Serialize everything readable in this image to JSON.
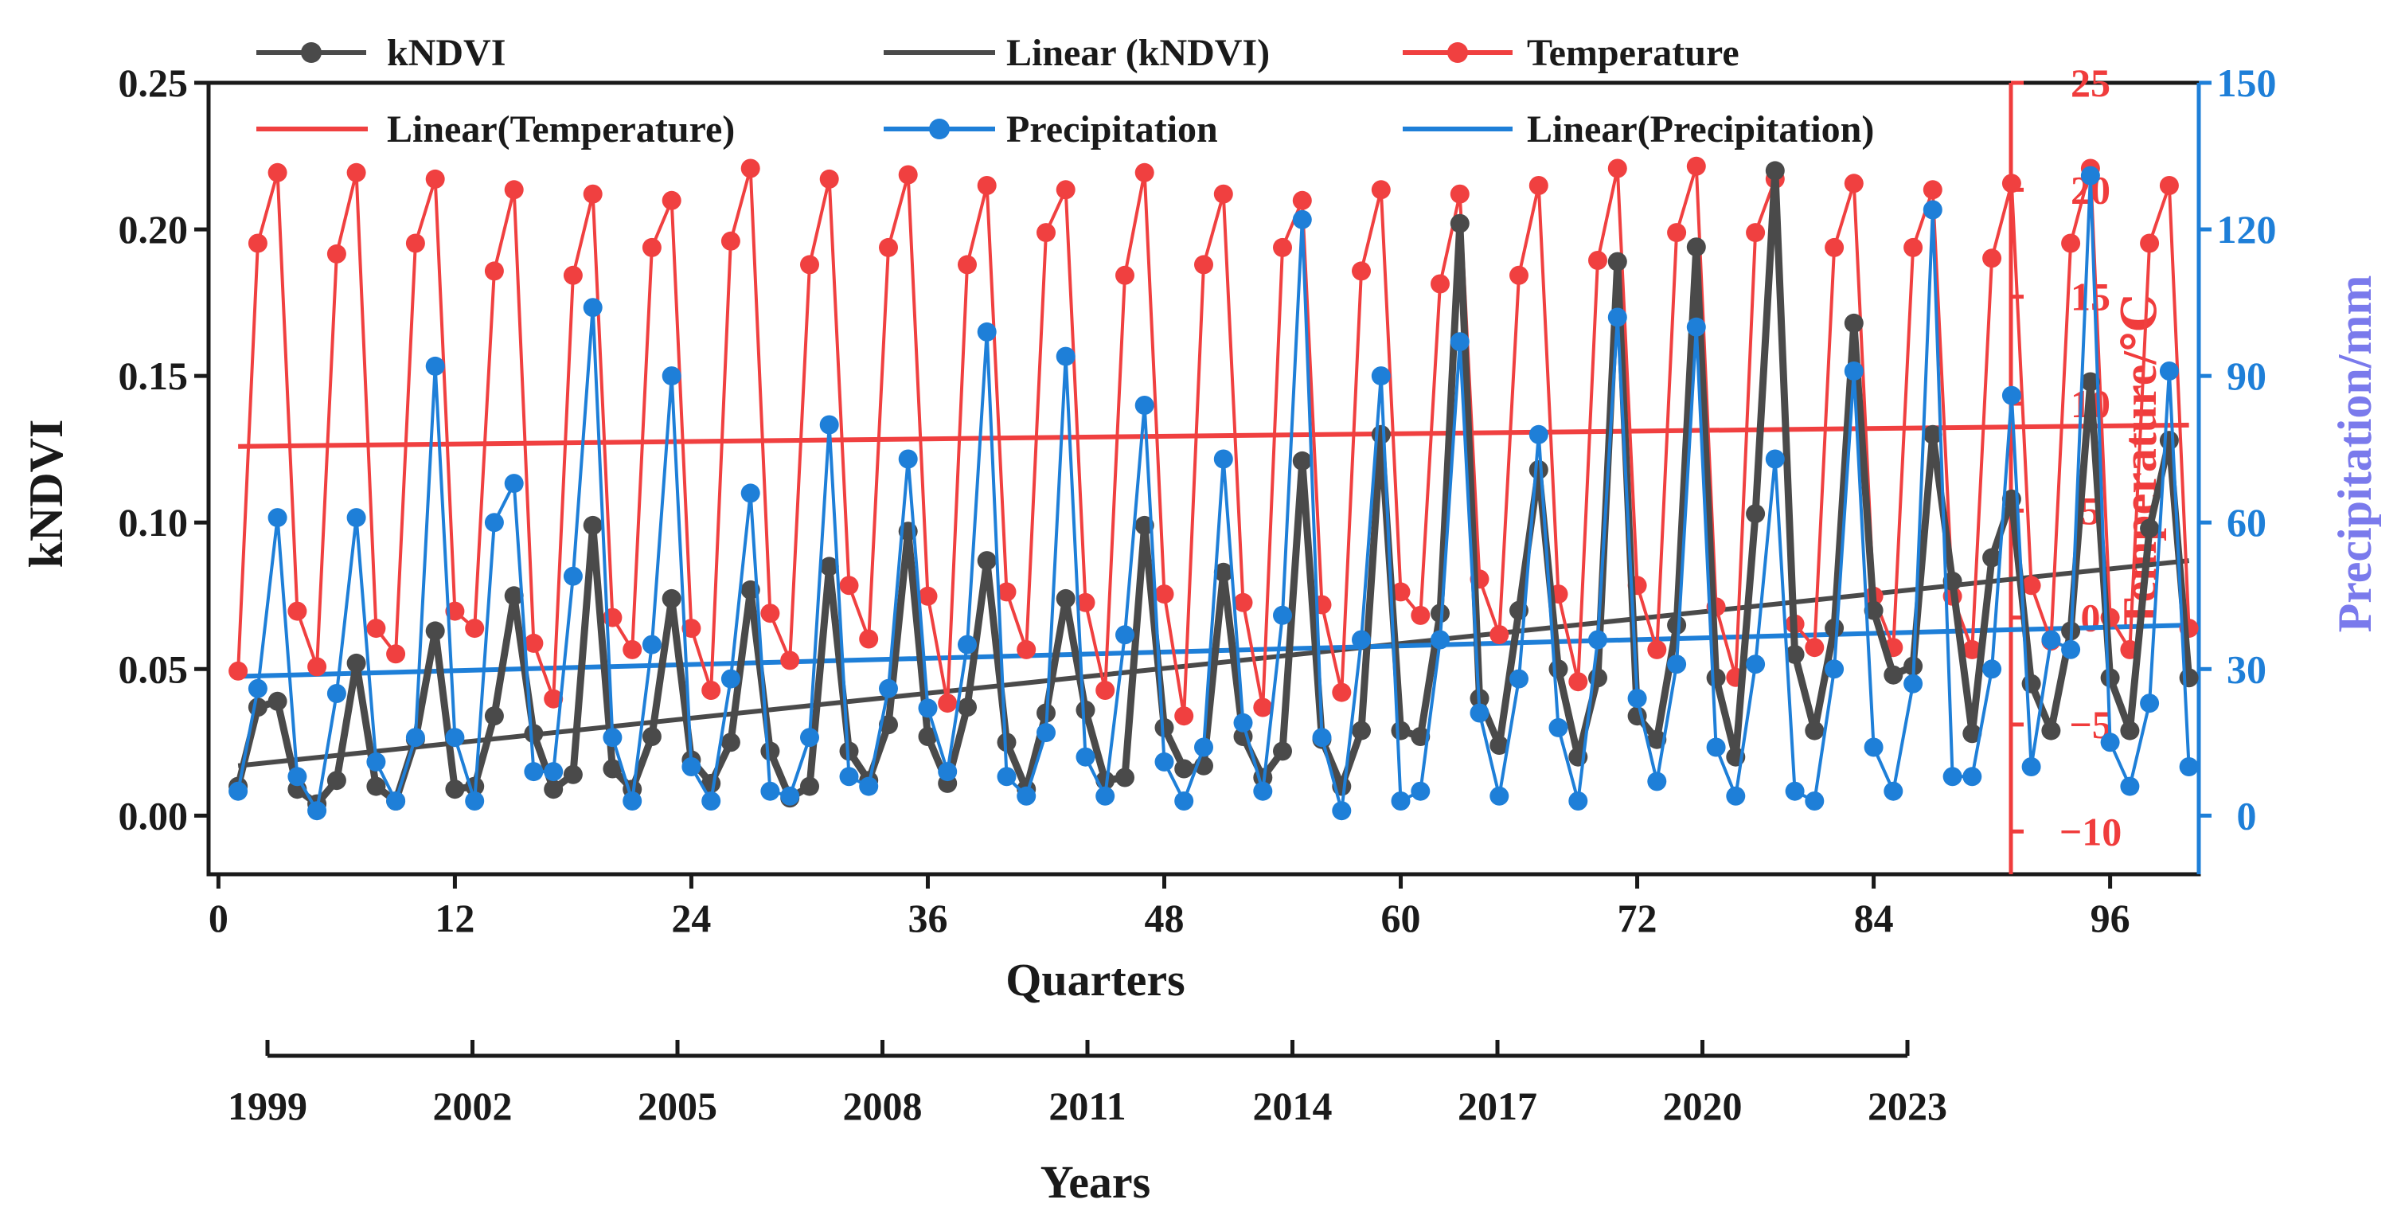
{
  "chart_data": {
    "type": "line",
    "title": "",
    "x": {
      "label": "Quarters",
      "range": [
        -0.5,
        100.5
      ],
      "ticks": [
        0,
        12,
        24,
        36,
        48,
        60,
        72,
        84,
        96
      ]
    },
    "years_axis": {
      "label": "Years",
      "ticks": [
        "1999",
        "2002",
        "2005",
        "2008",
        "2011",
        "2014",
        "2017",
        "2020",
        "2023"
      ]
    },
    "y_left": {
      "label": "kNDVI",
      "range": [
        -0.02,
        0.25
      ],
      "ticks": [
        "0.00",
        "0.05",
        "0.10",
        "0.15",
        "0.20",
        "0.25"
      ]
    },
    "y_temp": {
      "label": "Temperature/℃",
      "range": [
        -12,
        25
      ],
      "ticks": [
        "−10",
        "−5",
        "0",
        "5",
        "10",
        "15",
        "20",
        "25"
      ],
      "color": "#f03c3c"
    },
    "y_precip": {
      "label": "Precipitation/mm",
      "range": [
        -12,
        150
      ],
      "ticks": [
        "0",
        "30",
        "60",
        "90",
        "120",
        "150"
      ],
      "color": "#1e7fd8"
    },
    "legend": {
      "placement": "top",
      "entries": [
        {
          "label": "kNDVI",
          "kind": "line-marker",
          "color": "#4a4a4a"
        },
        {
          "label": "Linear (kNDVI)",
          "kind": "line",
          "color": "#4a4a4a"
        },
        {
          "label": "Temperature",
          "kind": "line-marker",
          "color": "#f04040"
        },
        {
          "label": "Linear(Temperature)",
          "kind": "line",
          "color": "#f04040"
        },
        {
          "label": "Precipitation",
          "kind": "line-marker",
          "color": "#1e7fd8"
        },
        {
          "label": "Linear(Precipitation)",
          "kind": "line",
          "color": "#1e7fd8"
        }
      ]
    },
    "series": [
      {
        "name": "kNDVI",
        "axis": "left",
        "color": "#4a4a4a",
        "x_start": 1,
        "values": [
          0.01,
          0.037,
          0.039,
          0.009,
          0.004,
          0.012,
          0.052,
          0.01,
          0.005,
          0.026,
          0.063,
          0.009,
          0.01,
          0.034,
          0.075,
          0.028,
          0.009,
          0.014,
          0.099,
          0.016,
          0.009,
          0.027,
          0.074,
          0.019,
          0.011,
          0.025,
          0.077,
          0.022,
          0.006,
          0.01,
          0.085,
          0.022,
          0.012,
          0.031,
          0.097,
          0.027,
          0.011,
          0.037,
          0.087,
          0.025,
          0.009,
          0.035,
          0.074,
          0.036,
          0.012,
          0.013,
          0.099,
          0.03,
          0.016,
          0.017,
          0.083,
          0.027,
          0.013,
          0.022,
          0.121,
          0.026,
          0.01,
          0.029,
          0.13,
          0.029,
          0.027,
          0.069,
          0.202,
          0.04,
          0.024,
          0.07,
          0.118,
          0.05,
          0.02,
          0.047,
          0.189,
          0.034,
          0.026,
          0.065,
          0.194,
          0.047,
          0.02,
          0.103,
          0.22,
          0.055,
          0.029,
          0.064,
          0.168,
          0.07,
          0.048,
          0.051,
          0.13,
          0.08,
          0.028,
          0.088,
          0.108,
          0.045,
          0.029,
          0.063,
          0.148,
          0.047,
          0.029,
          0.098,
          0.128,
          0.047
        ]
      },
      {
        "name": "Temperature",
        "axis": "temp",
        "color": "#f04040",
        "x_start": 1,
        "values": [
          -2.5,
          17.5,
          20.8,
          0.3,
          -2.3,
          17.0,
          20.8,
          -0.5,
          -1.7,
          17.5,
          20.5,
          0.3,
          -0.5,
          16.2,
          20.0,
          -1.2,
          -3.8,
          16.0,
          19.8,
          0.0,
          -1.5,
          17.3,
          19.5,
          -0.5,
          -3.4,
          17.6,
          21.0,
          0.2,
          -2.0,
          16.5,
          20.5,
          1.5,
          -1.0,
          17.3,
          20.7,
          1.0,
          -4.0,
          16.5,
          20.2,
          1.2,
          -1.5,
          18.0,
          20.0,
          0.7,
          -3.4,
          16.0,
          20.8,
          1.1,
          -4.6,
          16.5,
          19.8,
          0.7,
          -4.2,
          17.3,
          19.5,
          0.6,
          -3.5,
          16.2,
          20.0,
          1.2,
          0.1,
          15.6,
          19.8,
          1.8,
          -0.8,
          16.0,
          20.2,
          1.1,
          -3.0,
          16.7,
          21.0,
          1.5,
          -1.5,
          18.0,
          21.1,
          0.5,
          -2.8,
          18.0,
          20.5,
          -0.3,
          -1.4,
          17.3,
          20.3,
          1.0,
          -1.4,
          17.3,
          20.0,
          1.0,
          -1.5,
          16.8,
          20.3,
          1.5,
          -1.1,
          17.5,
          21.0,
          0.0,
          -1.5,
          17.5,
          20.2,
          -0.5
        ]
      },
      {
        "name": "Precipitation",
        "axis": "precip",
        "color": "#1e7fd8",
        "x_start": 1,
        "values": [
          5,
          26,
          61,
          8,
          1,
          25,
          61,
          11,
          3,
          16,
          92,
          16,
          3,
          60,
          68,
          9,
          9,
          49,
          104,
          16,
          3,
          35,
          90,
          10,
          3,
          28,
          66,
          5,
          4,
          16,
          80,
          8,
          6,
          26,
          73,
          22,
          9,
          35,
          99,
          8,
          4,
          17,
          94,
          12,
          4,
          37,
          84,
          11,
          3,
          14,
          73,
          19,
          5,
          41,
          122,
          16,
          1,
          36,
          90,
          3,
          5,
          36,
          97,
          21,
          4,
          28,
          78,
          18,
          3,
          36,
          102,
          24,
          7,
          31,
          100,
          14,
          4,
          31,
          73,
          5,
          3,
          30,
          91,
          14,
          5,
          27,
          124,
          8,
          8,
          30,
          86,
          10,
          36,
          34,
          131,
          15,
          6,
          23,
          91,
          10
        ]
      }
    ],
    "trendlines": [
      {
        "name": "Linear (kNDVI)",
        "axis": "left",
        "x": [
          1,
          100
        ],
        "y": [
          0.017,
          0.087
        ]
      },
      {
        "name": "Linear(Temperature)",
        "axis": "temp",
        "x": [
          1,
          100
        ],
        "y": [
          8.0,
          9.0
        ]
      },
      {
        "name": "Linear(Precipitation)",
        "axis": "precip",
        "x": [
          1,
          100
        ],
        "y": [
          28.5,
          39.0
        ]
      }
    ]
  }
}
